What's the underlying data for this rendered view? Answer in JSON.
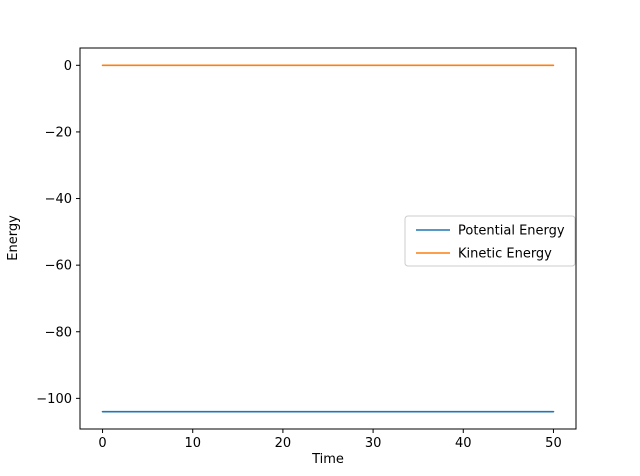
{
  "figure": {
    "background": "#ffffff"
  },
  "chart_data": {
    "type": "line",
    "title": "",
    "xlabel": "Time",
    "ylabel": "Energy",
    "x": [
      0,
      50
    ],
    "series": [
      {
        "name": "Potential Energy",
        "color": "#1f77b4",
        "values": [
          -104,
          -104
        ]
      },
      {
        "name": "Kinetic Energy",
        "color": "#ff7f0e",
        "values": [
          0,
          0
        ]
      }
    ],
    "xlim": [
      -2.5,
      52.5
    ],
    "ylim": [
      -109.2,
      5.2
    ],
    "xticks": [
      0,
      10,
      20,
      30,
      40,
      50
    ],
    "xtick_labels": [
      "0",
      "10",
      "20",
      "30",
      "40",
      "50"
    ],
    "yticks": [
      0,
      -20,
      -40,
      -60,
      -80,
      -100
    ],
    "ytick_labels": [
      "0",
      "−20",
      "−40",
      "−60",
      "−80",
      "−100"
    ],
    "grid": false,
    "legend": {
      "position": "center right",
      "entries": [
        "Potential Energy",
        "Kinetic Energy"
      ]
    },
    "axis_color": "#000000",
    "legend_edge_color": "#cccccc",
    "legend_face_color": "#ffffff"
  }
}
